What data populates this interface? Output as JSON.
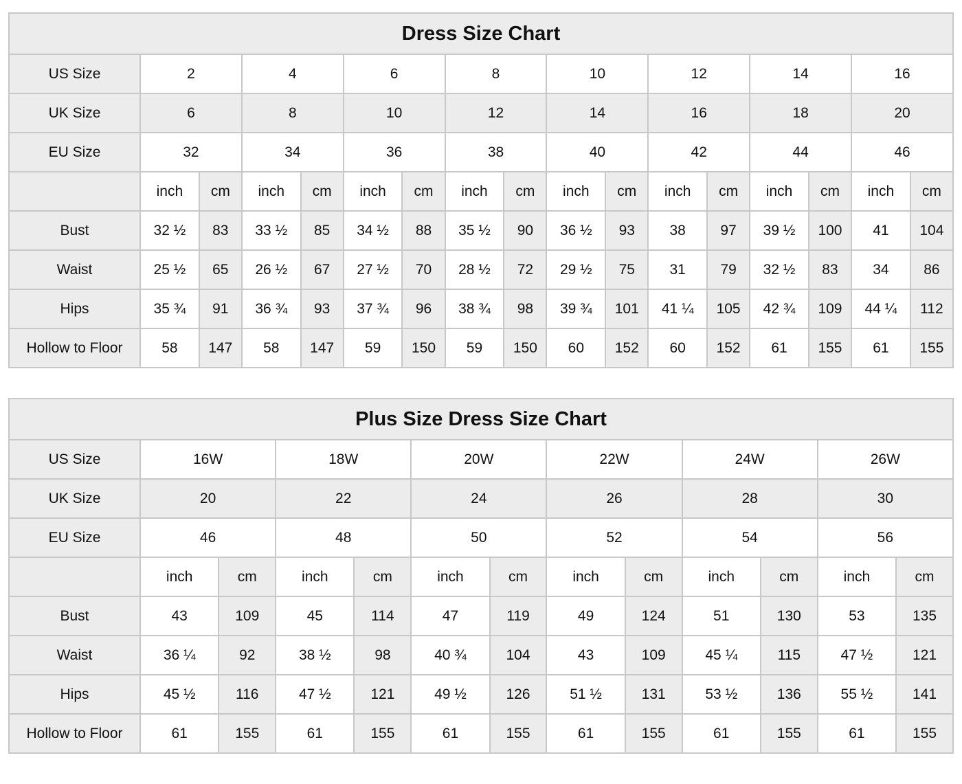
{
  "colors": {
    "shaded_cell": "#ececec",
    "border": "#c8c8c8",
    "text": "#111111",
    "background": "#ffffff"
  },
  "tables": [
    {
      "title": "Dress Size Chart",
      "size_rows": [
        {
          "label": "US Size",
          "values": [
            "2",
            "4",
            "6",
            "8",
            "10",
            "12",
            "14",
            "16"
          ]
        },
        {
          "label": "UK Size",
          "values": [
            "6",
            "8",
            "10",
            "12",
            "14",
            "16",
            "18",
            "20"
          ]
        },
        {
          "label": "EU Size",
          "values": [
            "32",
            "34",
            "36",
            "38",
            "40",
            "42",
            "44",
            "46"
          ]
        }
      ],
      "unit_headers": [
        "inch",
        "cm"
      ],
      "measurement_rows": [
        {
          "label": "Bust",
          "inch": [
            "32 ½",
            "33 ½",
            "34 ½",
            "35 ½",
            "36 ½",
            "38",
            "39 ½",
            "41"
          ],
          "cm": [
            "83",
            "85",
            "88",
            "90",
            "93",
            "97",
            "100",
            "104"
          ]
        },
        {
          "label": "Waist",
          "inch": [
            "25 ½",
            "26 ½",
            "27 ½",
            "28 ½",
            "29 ½",
            "31",
            "32 ½",
            "34"
          ],
          "cm": [
            "65",
            "67",
            "70",
            "72",
            "75",
            "79",
            "83",
            "86"
          ]
        },
        {
          "label": "Hips",
          "inch": [
            "35 ¾",
            "36 ¾",
            "37 ¾",
            "38 ¾",
            "39 ¾",
            "41 ¼",
            "42 ¾",
            "44 ¼"
          ],
          "cm": [
            "91",
            "93",
            "96",
            "98",
            "101",
            "105",
            "109",
            "112"
          ]
        },
        {
          "label": "Hollow to Floor",
          "inch": [
            "58",
            "58",
            "59",
            "59",
            "60",
            "60",
            "61",
            "61"
          ],
          "cm": [
            "147",
            "147",
            "150",
            "150",
            "152",
            "152",
            "155",
            "155"
          ]
        }
      ]
    },
    {
      "title": "Plus Size Dress Size Chart",
      "size_rows": [
        {
          "label": "US Size",
          "values": [
            "16W",
            "18W",
            "20W",
            "22W",
            "24W",
            "26W"
          ]
        },
        {
          "label": "UK Size",
          "values": [
            "20",
            "22",
            "24",
            "26",
            "28",
            "30"
          ]
        },
        {
          "label": "EU Size",
          "values": [
            "46",
            "48",
            "50",
            "52",
            "54",
            "56"
          ]
        }
      ],
      "unit_headers": [
        "inch",
        "cm"
      ],
      "measurement_rows": [
        {
          "label": "Bust",
          "inch": [
            "43",
            "45",
            "47",
            "49",
            "51",
            "53"
          ],
          "cm": [
            "109",
            "114",
            "119",
            "124",
            "130",
            "135"
          ]
        },
        {
          "label": "Waist",
          "inch": [
            "36 ¼",
            "38 ½",
            "40 ¾",
            "43",
            "45 ¼",
            "47 ½"
          ],
          "cm": [
            "92",
            "98",
            "104",
            "109",
            "115",
            "121"
          ]
        },
        {
          "label": "Hips",
          "inch": [
            "45 ½",
            "47 ½",
            "49 ½",
            "51 ½",
            "53 ½",
            "55 ½"
          ],
          "cm": [
            "116",
            "121",
            "126",
            "131",
            "136",
            "141"
          ]
        },
        {
          "label": "Hollow to Floor",
          "inch": [
            "61",
            "61",
            "61",
            "61",
            "61",
            "61"
          ],
          "cm": [
            "155",
            "155",
            "155",
            "155",
            "155",
            "155"
          ]
        }
      ]
    }
  ]
}
